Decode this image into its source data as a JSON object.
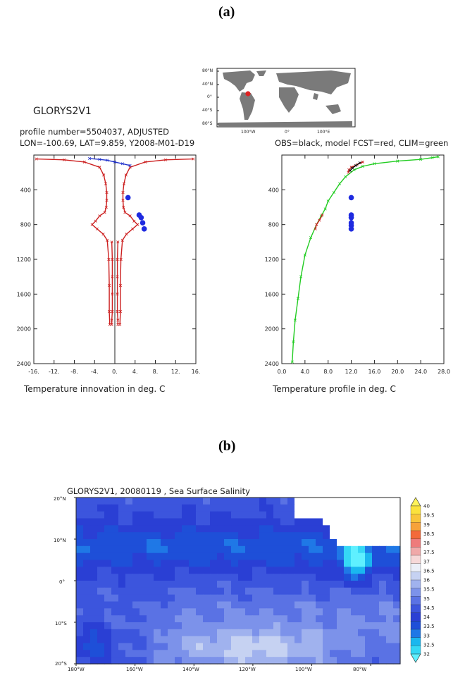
{
  "panel_a": {
    "label": "(a)",
    "title": "GLORYS2V1",
    "subtitle1": "profile number=5504037, ADJUSTED",
    "subtitle2": "LON=-100.69, LAT=9.859, Y2008-M01-D19",
    "right_legend": "OBS=black, model FCST=red, CLIM=green",
    "map": {
      "lat_labels": [
        "80°N",
        "40°N",
        "0°",
        "40°S",
        "80°S"
      ],
      "lon_labels": [
        "100°W",
        "0°",
        "100°E"
      ],
      "marker_lon": -100.69,
      "marker_lat": 9.859,
      "marker_color": "#dd2222"
    }
  },
  "panel_b": {
    "label": "(b)",
    "title": "GLORYS2V1, 20080119 , Sea Surface Salinity",
    "lat_labels": [
      "20°N",
      "10°N",
      "0°",
      "10°S",
      "20°S"
    ],
    "lon_labels": [
      "180°W",
      "160°W",
      "140°W",
      "120°W",
      "100°W",
      "80°W"
    ],
    "colorbar_labels": [
      "40",
      "39.5",
      "39",
      "38.5",
      "38",
      "37.5",
      "37",
      "36.5",
      "36",
      "35.5",
      "35",
      "34.5",
      "34",
      "33.5",
      "33",
      "32.5",
      "32"
    ]
  },
  "chart_data": [
    {
      "type": "line",
      "name": "temperature-innovation",
      "xlabel": "Temperature innovation in deg. C",
      "ylabel": "",
      "xlim": [
        -16,
        16
      ],
      "ylim": [
        2400,
        0
      ],
      "xticks": [
        -16,
        -12,
        -8,
        -4,
        0,
        4,
        8,
        12,
        16
      ],
      "xtick_labels": [
        "-16.",
        "-12.",
        "-8.",
        "-4.",
        "0.",
        "4.",
        "8.",
        "12.",
        "16."
      ],
      "yticks": [
        400,
        800,
        1200,
        1600,
        2000,
        2400
      ],
      "series": [
        {
          "color": "#cc2020",
          "x": [
            -15.5,
            -10,
            -6,
            -3,
            -2.2,
            -1.8,
            -1.6,
            -1.6,
            -1.7,
            -2,
            -3,
            -3.8,
            -4.5,
            -3.5,
            -2.3,
            -1.5,
            -1.2,
            -1.1,
            -1.1,
            -1.0
          ],
          "y": [
            45,
            55,
            80,
            140,
            230,
            330,
            430,
            520,
            600,
            660,
            700,
            760,
            800,
            850,
            910,
            980,
            1200,
            1500,
            1800,
            1950
          ]
        },
        {
          "color": "#cc2020",
          "x": [
            15.5,
            10,
            6,
            3,
            2.2,
            1.8,
            1.6,
            1.6,
            1.7,
            2,
            3,
            3.8,
            4.5,
            3.5,
            2.3,
            1.5,
            1.2,
            1.1,
            1.1,
            1.0
          ],
          "y": [
            45,
            55,
            80,
            140,
            230,
            330,
            430,
            520,
            600,
            660,
            700,
            760,
            800,
            850,
            910,
            980,
            1200,
            1500,
            1800,
            1950
          ]
        },
        {
          "color": "#cc2020",
          "x": [
            -0.6,
            -0.5,
            -0.5,
            -0.5,
            -0.5,
            -0.6,
            -0.6
          ],
          "y": [
            1000,
            1200,
            1400,
            1600,
            1800,
            1900,
            1950
          ]
        },
        {
          "color": "#cc2020",
          "x": [
            0.6,
            0.5,
            0.5,
            0.5,
            0.5,
            0.6,
            0.6
          ],
          "y": [
            1000,
            1200,
            1400,
            1600,
            1800,
            1900,
            1950
          ]
        },
        {
          "color": "#2233cc",
          "x": [
            -5,
            -3,
            -1.5,
            0,
            1.5,
            3
          ],
          "y": [
            40,
            50,
            60,
            80,
            100,
            120
          ]
        }
      ],
      "points": {
        "color": "#1f2be0",
        "x": [
          2.6,
          4.8,
          5.2,
          5.5,
          5.8
        ],
        "y": [
          490,
          690,
          720,
          780,
          850
        ]
      }
    },
    {
      "type": "line",
      "name": "temperature-profile",
      "xlabel": "Temperature profile in deg. C",
      "ylabel": "",
      "xlim": [
        0,
        28
      ],
      "ylim": [
        2400,
        0
      ],
      "xticks": [
        0,
        4,
        8,
        12,
        16,
        20,
        24,
        28
      ],
      "xtick_labels": [
        "0.0",
        "4.0",
        "8.0",
        "12.0",
        "16.0",
        "20.0",
        "24.0",
        "28.0"
      ],
      "yticks": [
        400,
        800,
        1200,
        1600,
        2000,
        2400
      ],
      "series": [
        {
          "name": "CLIM",
          "color": "#22cc22",
          "x": [
            27,
            26,
            24,
            20,
            16,
            14,
            12.5,
            11,
            10,
            9,
            8,
            7.5,
            6.8,
            6,
            5,
            4,
            3.3,
            2.8,
            2.3,
            2.0,
            1.8
          ],
          "y": [
            20,
            30,
            50,
            70,
            100,
            130,
            170,
            250,
            330,
            430,
            530,
            620,
            700,
            800,
            950,
            1150,
            1400,
            1650,
            1900,
            2150,
            2380
          ]
        },
        {
          "name": "FCST",
          "color": "#cc2020",
          "x": [
            14,
            13,
            12,
            11.6,
            11.5
          ],
          "y": [
            80,
            110,
            140,
            170,
            200
          ]
        },
        {
          "name": "FCST",
          "color": "#cc2020",
          "x": [
            7,
            6.5,
            6,
            5.8
          ],
          "y": [
            690,
            750,
            800,
            850
          ]
        },
        {
          "name": "OBS",
          "color": "#000000",
          "x": [
            13.5,
            12.8,
            12.2,
            11.8
          ],
          "y": [
            90,
            120,
            150,
            180
          ]
        }
      ],
      "points": {
        "color": "#1f2be0",
        "x": [
          12,
          12,
          12,
          12,
          12,
          12
        ],
        "y": [
          490,
          690,
          720,
          780,
          810,
          850
        ]
      }
    },
    {
      "type": "heatmap",
      "name": "sea-surface-salinity",
      "title": "GLORYS2V1, 20080119 , Sea Surface Salinity",
      "xlim": [
        -180,
        -70
      ],
      "ylim": [
        -20,
        20
      ],
      "colorbar_range": [
        32,
        40
      ],
      "colorbar_colors": [
        "#5ff0ff",
        "#35d8f5",
        "#1ab7ef",
        "#1f78e6",
        "#1e4fd8",
        "#2a3fd4",
        "#3c55dd",
        "#5a72e4",
        "#7c92ea",
        "#a0b2ee",
        "#c6d2f2",
        "#ebeff8",
        "#f6d8d8",
        "#f0a9a9",
        "#ee7b7b",
        "#f36a3a",
        "#f7a23a",
        "#f9c53a",
        "#fbe23c",
        "#fff35a"
      ]
    }
  ]
}
